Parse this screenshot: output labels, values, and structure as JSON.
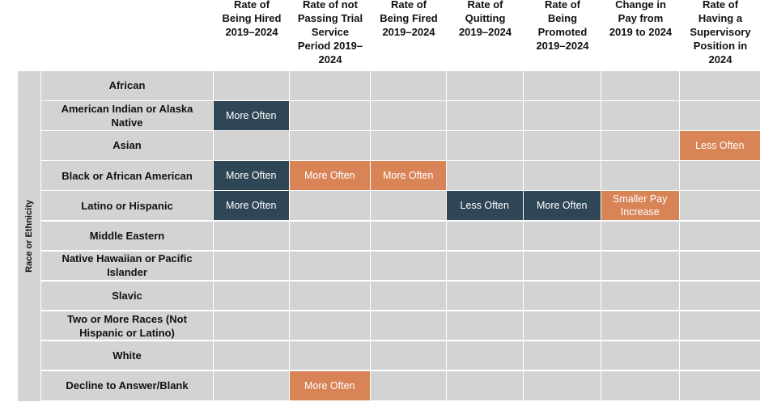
{
  "chart_data": {
    "type": "table",
    "side_label": "Race or Ethnicity",
    "columns": [
      "Rate of Being Hired 2019–2024",
      "Rate of not Passing Trial Service Period 2019–2024",
      "Rate of Being Fired 2019–2024",
      "Rate of Quitting 2019–2024",
      "Rate of Being Promoted 2019–2024",
      "Change in Pay from 2019 to 2024",
      "Rate of Having a Supervisory Position in 2024"
    ],
    "rows": [
      {
        "label": "African",
        "cells": [
          "",
          "",
          "",
          "",
          "",
          "",
          ""
        ]
      },
      {
        "label": "American Indian or Alaska Native",
        "cells": [
          "More Often",
          "",
          "",
          "",
          "",
          "",
          ""
        ]
      },
      {
        "label": "Asian",
        "cells": [
          "",
          "",
          "",
          "",
          "",
          "",
          "Less Often"
        ]
      },
      {
        "label": "Black or African American",
        "cells": [
          "More Often",
          "More Often",
          "More Often",
          "",
          "",
          "",
          ""
        ]
      },
      {
        "label": "Latino or Hispanic",
        "cells": [
          "More Often",
          "",
          "",
          "Less Often",
          "More Often",
          "Smaller Pay Increase",
          ""
        ]
      },
      {
        "label": "Middle Eastern",
        "cells": [
          "",
          "",
          "",
          "",
          "",
          "",
          ""
        ]
      },
      {
        "label": "Native Hawaiian or Pacific Islander",
        "cells": [
          "",
          "",
          "",
          "",
          "",
          "",
          ""
        ]
      },
      {
        "label": "Slavic",
        "cells": [
          "",
          "",
          "",
          "",
          "",
          "",
          ""
        ]
      },
      {
        "label": "Two or More Races (Not Hispanic or Latino)",
        "cells": [
          "",
          "",
          "",
          "",
          "",
          "",
          ""
        ]
      },
      {
        "label": "White",
        "cells": [
          "",
          "",
          "",
          "",
          "",
          "",
          ""
        ]
      },
      {
        "label": "Decline to Answer/Blank",
        "cells": [
          "",
          "More Often",
          "",
          "",
          "",
          "",
          ""
        ]
      }
    ],
    "cell_styles": [
      [
        "",
        "",
        "",
        "",
        "",
        "",
        ""
      ],
      [
        "dark",
        "",
        "",
        "",
        "",
        "",
        ""
      ],
      [
        "",
        "",
        "",
        "",
        "",
        "",
        "orange"
      ],
      [
        "dark",
        "orange",
        "orange",
        "",
        "",
        "",
        ""
      ],
      [
        "dark",
        "",
        "",
        "dark",
        "dark",
        "orange",
        ""
      ],
      [
        "",
        "",
        "",
        "",
        "",
        "",
        ""
      ],
      [
        "",
        "",
        "",
        "",
        "",
        "",
        ""
      ],
      [
        "",
        "",
        "",
        "",
        "",
        "",
        ""
      ],
      [
        "",
        "",
        "",
        "",
        "",
        "",
        ""
      ],
      [
        "",
        "",
        "",
        "",
        "",
        "",
        ""
      ],
      [
        "",
        "orange",
        "",
        "",
        "",
        "",
        ""
      ]
    ],
    "colors": {
      "dark": "#2e4655",
      "orange": "#d88457",
      "neutral": "#d3d3d3"
    }
  }
}
